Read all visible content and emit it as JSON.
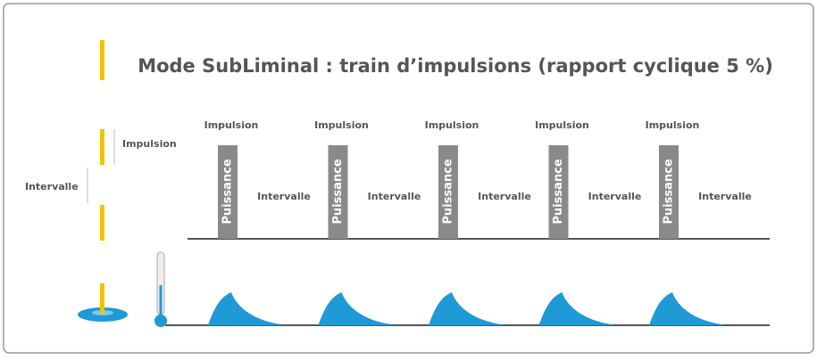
{
  "title": "Mode SubLiminal : train d’impulsions (rapport cyclique 5 %)",
  "legend": {
    "pulse": "Impulsion",
    "interval": "Intervalle"
  },
  "pulses": [
    {
      "top": "Impulsion",
      "bar": "Puissance",
      "interval": "Intervalle"
    },
    {
      "top": "Impulsion",
      "bar": "Puissance",
      "interval": "Intervalle"
    },
    {
      "top": "Impulsion",
      "bar": "Puissance",
      "interval": "Intervalle"
    },
    {
      "top": "Impulsion",
      "bar": "Puissance",
      "interval": "Intervalle"
    },
    {
      "top": "Impulsion",
      "bar": "Puissance",
      "interval": "Intervalle"
    }
  ]
}
